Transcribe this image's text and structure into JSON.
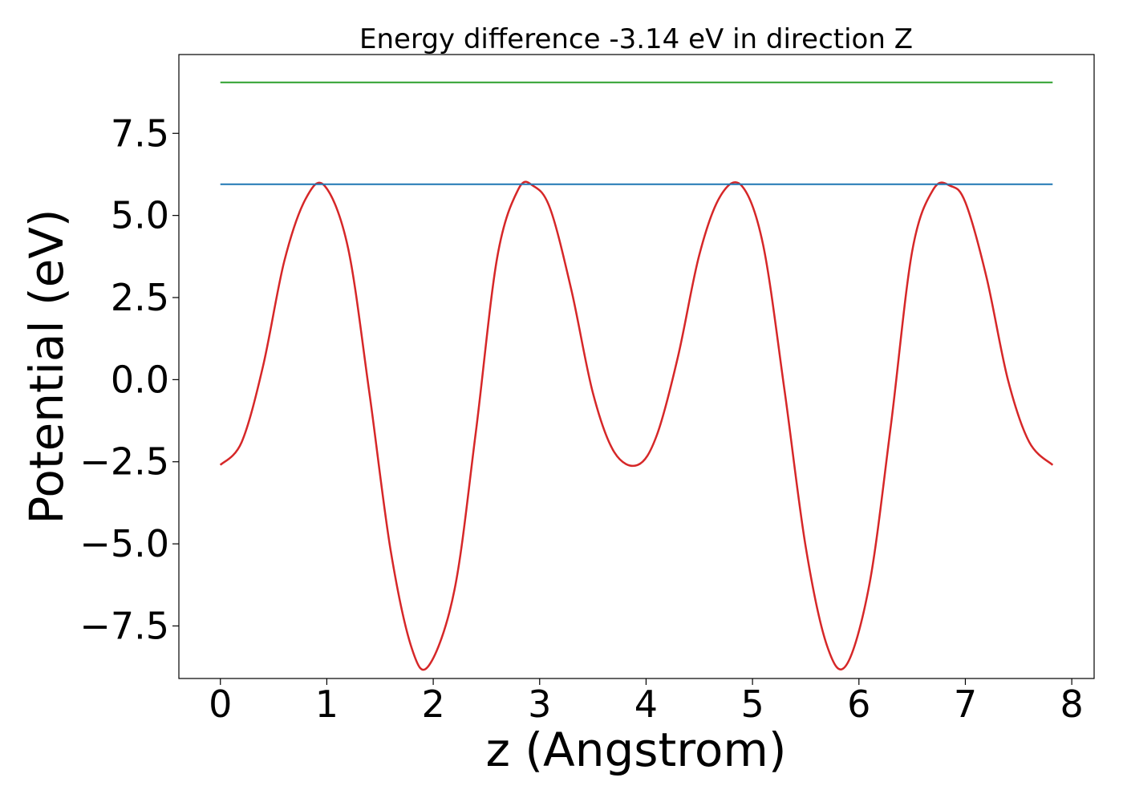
{
  "chart_data": {
    "type": "line",
    "title": "Energy difference -3.14 eV in direction Z",
    "xlabel": "z (Angstrom)",
    "ylabel": "Potential (eV)",
    "xlim": [
      -0.39,
      8.21
    ],
    "ylim": [
      -9.1,
      9.9
    ],
    "xticks": [
      0,
      1,
      2,
      3,
      4,
      5,
      6,
      7,
      8
    ],
    "xtick_labels": [
      "0",
      "1",
      "2",
      "3",
      "4",
      "5",
      "6",
      "7",
      "8"
    ],
    "yticks": [
      -7.5,
      -5.0,
      -2.5,
      0.0,
      2.5,
      5.0,
      7.5
    ],
    "ytick_labels": [
      "−7.5",
      "−5.0",
      "−2.5",
      "0.0",
      "2.5",
      "5.0",
      "7.5"
    ],
    "grid": false,
    "series": [
      {
        "color": "#d62728",
        "x": [
          0.0,
          0.2,
          0.4,
          0.6,
          0.8,
          0.98,
          1.2,
          1.4,
          1.6,
          1.8,
          1.96,
          2.2,
          2.4,
          2.6,
          2.8,
          2.94,
          3.1,
          3.3,
          3.5,
          3.7,
          3.92,
          4.1,
          4.3,
          4.5,
          4.7,
          4.9,
          5.1,
          5.3,
          5.5,
          5.7,
          5.88,
          6.1,
          6.3,
          6.5,
          6.7,
          6.86,
          7.0,
          7.2,
          7.4,
          7.6,
          7.82
        ],
        "y": [
          -2.6,
          -1.9,
          0.4,
          3.6,
          5.5,
          5.9,
          4.0,
          -0.4,
          -5.2,
          -8.2,
          -8.7,
          -6.4,
          -1.6,
          3.7,
          5.8,
          5.9,
          5.2,
          2.7,
          -0.4,
          -2.2,
          -2.6,
          -1.7,
          0.7,
          3.8,
          5.6,
          5.9,
          4.1,
          -0.3,
          -5.1,
          -8.1,
          -8.7,
          -6.2,
          -1.4,
          3.9,
          5.8,
          5.9,
          5.4,
          3.1,
          0.0,
          -1.9,
          -2.6
        ]
      },
      {
        "color": "#1f77b4",
        "x": [
          0.0,
          7.82
        ],
        "y": [
          5.95,
          5.95
        ]
      },
      {
        "color": "#2ca02c",
        "x": [
          0.0,
          7.82
        ],
        "y": [
          9.05,
          9.05
        ]
      }
    ]
  }
}
